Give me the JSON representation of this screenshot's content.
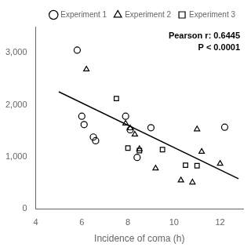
{
  "chart_data": {
    "type": "scatter",
    "xlabel": "Incidence of coma (h)",
    "xlim": [
      4,
      13
    ],
    "ylim": [
      0,
      3500
    ],
    "xticks": [
      4,
      6,
      8,
      10,
      12
    ],
    "yticks": [
      0,
      1000,
      2000,
      3000
    ],
    "grid": false,
    "legend": "upper right",
    "annotations": [
      "Pearson r: 0.6445",
      "P < 0.0001"
    ],
    "series": [
      {
        "name": "Experiment 1",
        "marker": "circle",
        "color": "#000000",
        "x": [
          5.8,
          6.0,
          6.1,
          6.5,
          6.6,
          7.9,
          8.1,
          8.4,
          9.0,
          12.2
        ],
        "values": [
          3050,
          1780,
          1620,
          1380,
          1310,
          1780,
          1520,
          990,
          1560,
          1570
        ]
      },
      {
        "name": "Experiment 2",
        "marker": "triangle",
        "color": "#000000",
        "x": [
          6.2,
          7.9,
          8.1,
          8.3,
          8.5,
          9.2,
          10.3,
          10.8,
          11.0,
          11.2,
          12.0
        ],
        "values": [
          2680,
          1640,
          1550,
          1430,
          1150,
          780,
          550,
          510,
          1530,
          1100,
          870
        ]
      },
      {
        "name": "Experiment 3",
        "marker": "square",
        "color": "#000000",
        "x": [
          7.5,
          8.0,
          8.5,
          9.5,
          10.5,
          11.0
        ],
        "values": [
          2120,
          1170,
          1120,
          1140,
          840,
          830
        ]
      },
      {
        "type": "line",
        "color": "#000000",
        "x": [
          5.0,
          12.8
        ],
        "values": [
          2250,
          580
        ]
      }
    ]
  }
}
